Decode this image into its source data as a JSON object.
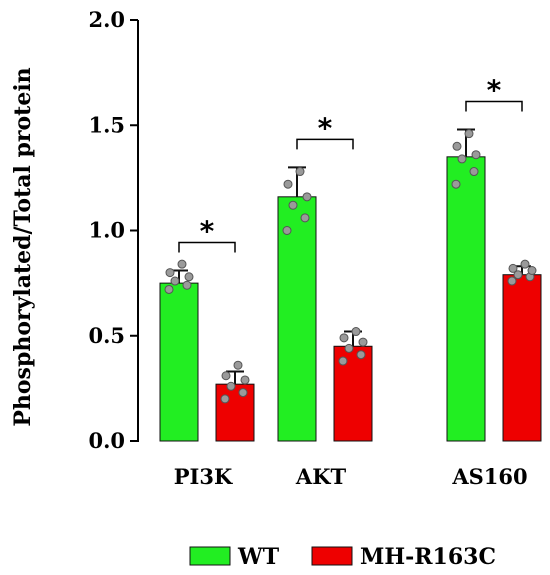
{
  "chart_data": {
    "type": "bar",
    "title": "",
    "xlabel": "",
    "ylabel": "Phosphorylated/Total protein",
    "ylim": [
      0,
      2.0
    ],
    "yticks": [
      "0.0",
      "0.5",
      "1.0",
      "1.5",
      "2.0"
    ],
    "ytick_values": [
      0,
      0.5,
      1.0,
      1.5,
      2.0
    ],
    "categories": [
      "PI3K",
      "AKT",
      "AS160"
    ],
    "series": [
      {
        "name": "WT",
        "color": "#22ee22",
        "values": [
          0.75,
          1.16,
          1.35
        ],
        "errors": [
          0.06,
          0.14,
          0.13
        ],
        "points": [
          [
            0.72,
            0.74,
            0.76,
            0.78,
            0.8,
            0.84
          ],
          [
            1.0,
            1.06,
            1.12,
            1.16,
            1.22,
            1.28
          ],
          [
            1.22,
            1.28,
            1.34,
            1.36,
            1.4,
            1.46
          ]
        ]
      },
      {
        "name": "MH-R163C",
        "color": "#ee0000",
        "values": [
          0.27,
          0.45,
          0.79
        ],
        "errors": [
          0.06,
          0.07,
          0.04
        ],
        "points": [
          [
            0.2,
            0.23,
            0.26,
            0.29,
            0.31,
            0.36
          ],
          [
            0.38,
            0.41,
            0.44,
            0.47,
            0.49,
            0.52
          ],
          [
            0.76,
            0.78,
            0.79,
            0.81,
            0.82,
            0.84
          ]
        ]
      }
    ],
    "significance": [
      "*",
      "*",
      "*"
    ],
    "legend_position": "bottom",
    "grid": false
  }
}
